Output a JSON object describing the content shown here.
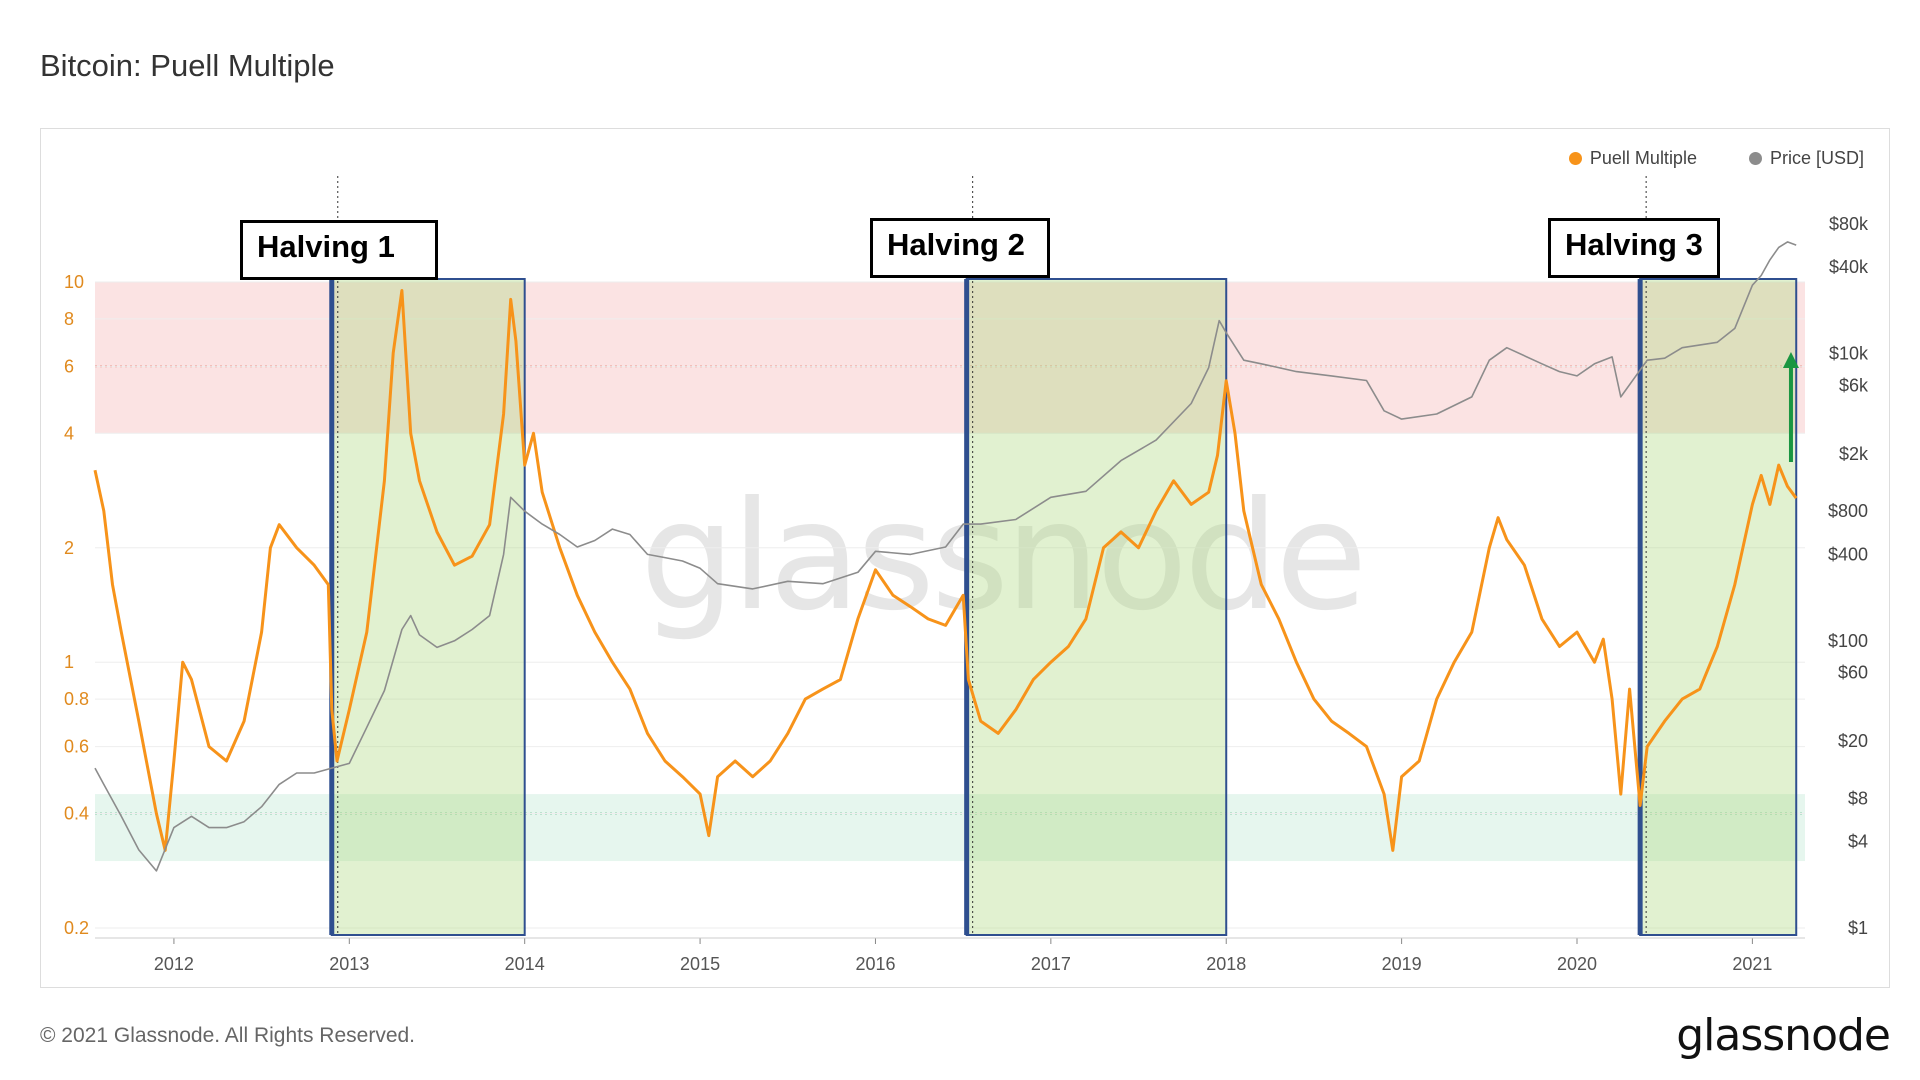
{
  "page": {
    "title": "Bitcoin: Puell Multiple",
    "watermark": "glassnode",
    "footer_copyright": "© 2021 Glassnode. All Rights Reserved.",
    "footer_logo": "glassnode"
  },
  "annotations": {
    "halvings": [
      {
        "label": "Halving 1",
        "date": 2012.9
      },
      {
        "label": "Halving 2",
        "date": 2016.52
      },
      {
        "label": "Halving 3",
        "date": 2020.36
      }
    ],
    "highlight_windows": [
      {
        "start": 2012.9,
        "end": 2014.0
      },
      {
        "start": 2016.52,
        "end": 2018.0
      },
      {
        "start": 2020.36,
        "end": 2021.25
      }
    ],
    "arrow_color": "#1a9641"
  },
  "chart_data": {
    "type": "line",
    "title": "Bitcoin: Puell Multiple",
    "x_range": [
      2011.55,
      2021.3
    ],
    "x_ticks": [
      2012,
      2013,
      2014,
      2015,
      2016,
      2017,
      2018,
      2019,
      2020,
      2021
    ],
    "x_tick_labels": [
      "2012",
      "2013",
      "2014",
      "2015",
      "2016",
      "2017",
      "2018",
      "2019",
      "2020",
      "2021"
    ],
    "y_left": {
      "scale": "log",
      "range": [
        0.2,
        10
      ],
      "ticks": [
        0.2,
        0.4,
        0.6,
        0.8,
        1,
        2,
        4,
        6,
        8,
        10
      ],
      "tick_labels": [
        "0.2",
        "0.4",
        "0.6",
        "0.8",
        "1",
        "2",
        "4",
        "6",
        "8",
        "10"
      ],
      "color": "#f7931a"
    },
    "y_right": {
      "scale": "log",
      "range": [
        1,
        80000
      ],
      "ticks": [
        1,
        4,
        8,
        20,
        60,
        100,
        400,
        800,
        2000,
        6000,
        10000,
        40000,
        80000
      ],
      "tick_labels": [
        "$1",
        "$4",
        "$8",
        "$20",
        "$60",
        "$100",
        "$400",
        "$800",
        "$2k",
        "$6k",
        "$10k",
        "$40k",
        "$80k"
      ],
      "color": "#444444"
    },
    "bands": [
      {
        "name": "red",
        "from": 4,
        "to": 10,
        "color": "#fbe3e3",
        "line": 6,
        "line_color": "#e05a4a"
      },
      {
        "name": "green",
        "from": 0.3,
        "to": 0.45,
        "color": "#e6f6ee",
        "line": 0.4,
        "line_color": "#3aa76d"
      }
    ],
    "grid": true,
    "legend_position": "top-right",
    "series": [
      {
        "name": "Puell Multiple",
        "axis": "left",
        "color": "#f7931a",
        "x": [
          2011.55,
          2011.6,
          2011.65,
          2011.7,
          2011.8,
          2011.9,
          2011.95,
          2012.0,
          2012.05,
          2012.1,
          2012.2,
          2012.3,
          2012.4,
          2012.5,
          2012.55,
          2012.6,
          2012.7,
          2012.8,
          2012.88,
          2012.9,
          2012.93,
          2013.0,
          2013.1,
          2013.2,
          2013.25,
          2013.3,
          2013.35,
          2013.4,
          2013.5,
          2013.6,
          2013.7,
          2013.8,
          2013.88,
          2013.92,
          2013.95,
          2014.0,
          2014.05,
          2014.1,
          2014.2,
          2014.3,
          2014.4,
          2014.5,
          2014.6,
          2014.7,
          2014.8,
          2014.9,
          2015.0,
          2015.05,
          2015.1,
          2015.2,
          2015.3,
          2015.4,
          2015.5,
          2015.6,
          2015.7,
          2015.8,
          2015.9,
          2016.0,
          2016.1,
          2016.2,
          2016.3,
          2016.4,
          2016.5,
          2016.53,
          2016.6,
          2016.7,
          2016.8,
          2016.9,
          2017.0,
          2017.1,
          2017.2,
          2017.3,
          2017.4,
          2017.5,
          2017.6,
          2017.7,
          2017.8,
          2017.9,
          2017.95,
          2018.0,
          2018.05,
          2018.1,
          2018.2,
          2018.3,
          2018.4,
          2018.5,
          2018.6,
          2018.7,
          2018.8,
          2018.9,
          2018.95,
          2019.0,
          2019.1,
          2019.2,
          2019.3,
          2019.4,
          2019.5,
          2019.55,
          2019.6,
          2019.7,
          2019.8,
          2019.9,
          2020.0,
          2020.1,
          2020.15,
          2020.2,
          2020.25,
          2020.3,
          2020.36,
          2020.4,
          2020.5,
          2020.6,
          2020.7,
          2020.8,
          2020.9,
          2021.0,
          2021.05,
          2021.1,
          2021.15,
          2021.2,
          2021.25
        ],
        "y": [
          3.2,
          2.5,
          1.6,
          1.2,
          0.7,
          0.4,
          0.32,
          0.55,
          1.0,
          0.9,
          0.6,
          0.55,
          0.7,
          1.2,
          2.0,
          2.3,
          2.0,
          1.8,
          1.6,
          0.75,
          0.55,
          0.75,
          1.2,
          3.0,
          6.5,
          9.5,
          4.0,
          3.0,
          2.2,
          1.8,
          1.9,
          2.3,
          4.5,
          9.0,
          7.0,
          3.3,
          4.0,
          2.8,
          2.0,
          1.5,
          1.2,
          1.0,
          0.85,
          0.65,
          0.55,
          0.5,
          0.45,
          0.35,
          0.5,
          0.55,
          0.5,
          0.55,
          0.65,
          0.8,
          0.85,
          0.9,
          1.3,
          1.75,
          1.5,
          1.4,
          1.3,
          1.25,
          1.5,
          0.9,
          0.7,
          0.65,
          0.75,
          0.9,
          1.0,
          1.1,
          1.3,
          2.0,
          2.2,
          2.0,
          2.5,
          3.0,
          2.6,
          2.8,
          3.5,
          5.5,
          4.0,
          2.5,
          1.6,
          1.3,
          1.0,
          0.8,
          0.7,
          0.65,
          0.6,
          0.45,
          0.32,
          0.5,
          0.55,
          0.8,
          1.0,
          1.2,
          2.0,
          2.4,
          2.1,
          1.8,
          1.3,
          1.1,
          1.2,
          1.0,
          1.15,
          0.8,
          0.45,
          0.85,
          0.42,
          0.6,
          0.7,
          0.8,
          0.85,
          1.1,
          1.6,
          2.6,
          3.1,
          2.6,
          3.3,
          2.9,
          2.7
        ]
      },
      {
        "name": "Price [USD]",
        "axis": "right",
        "color": "#8c8c8c",
        "x": [
          2011.55,
          2011.6,
          2011.7,
          2011.8,
          2011.9,
          2012.0,
          2012.1,
          2012.2,
          2012.3,
          2012.4,
          2012.5,
          2012.6,
          2012.7,
          2012.8,
          2012.9,
          2013.0,
          2013.1,
          2013.2,
          2013.3,
          2013.35,
          2013.4,
          2013.5,
          2013.6,
          2013.7,
          2013.8,
          2013.88,
          2013.92,
          2014.0,
          2014.1,
          2014.2,
          2014.3,
          2014.4,
          2014.5,
          2014.6,
          2014.7,
          2014.8,
          2014.9,
          2015.0,
          2015.1,
          2015.3,
          2015.5,
          2015.7,
          2015.9,
          2016.0,
          2016.2,
          2016.4,
          2016.5,
          2016.6,
          2016.8,
          2017.0,
          2017.2,
          2017.4,
          2017.6,
          2017.8,
          2017.9,
          2017.96,
          2018.0,
          2018.1,
          2018.2,
          2018.4,
          2018.6,
          2018.8,
          2018.9,
          2019.0,
          2019.2,
          2019.4,
          2019.5,
          2019.6,
          2019.8,
          2019.9,
          2020.0,
          2020.1,
          2020.2,
          2020.25,
          2020.4,
          2020.5,
          2020.6,
          2020.8,
          2020.9,
          2021.0,
          2021.05,
          2021.1,
          2021.15,
          2021.2,
          2021.25
        ],
        "y": [
          13,
          10,
          6,
          3.5,
          2.5,
          5,
          6,
          5,
          5,
          5.5,
          7,
          10,
          12,
          12,
          13,
          14,
          25,
          45,
          120,
          150,
          110,
          90,
          100,
          120,
          150,
          400,
          1000,
          800,
          650,
          550,
          450,
          500,
          600,
          550,
          400,
          380,
          360,
          320,
          250,
          230,
          260,
          250,
          300,
          420,
          400,
          450,
          650,
          650,
          700,
          1000,
          1100,
          1800,
          2500,
          4500,
          8000,
          17000,
          14000,
          9000,
          8500,
          7500,
          7000,
          6500,
          4000,
          3500,
          3800,
          5000,
          9000,
          11000,
          8500,
          7500,
          7000,
          8500,
          9500,
          5000,
          9000,
          9300,
          11000,
          12000,
          15000,
          30000,
          35000,
          45000,
          55000,
          60000,
          57000
        ]
      }
    ]
  }
}
